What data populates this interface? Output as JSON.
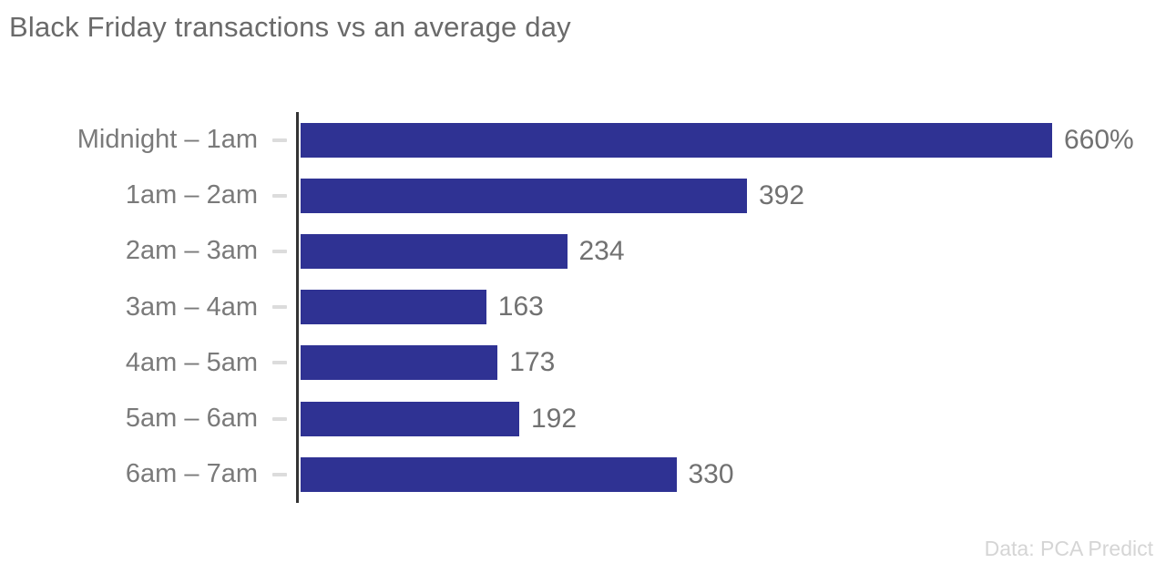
{
  "title": "Black Friday transactions vs an average day",
  "footer": {
    "source_label": "Data: PCA Predict"
  },
  "chart_data": {
    "type": "bar",
    "orientation": "horizontal",
    "title": "Black Friday transactions vs an average day",
    "categories": [
      "Midnight – 1am",
      "1am – 2am",
      "2am – 3am",
      "3am – 4am",
      "4am – 5am",
      "5am – 6am",
      "6am – 7am"
    ],
    "values": [
      660,
      392,
      234,
      163,
      173,
      192,
      330
    ],
    "value_labels": [
      "660%",
      "392",
      "234",
      "163",
      "173",
      "192",
      "330"
    ],
    "xlabel": "",
    "ylabel": "",
    "xlim": [
      0,
      660
    ],
    "grid": false,
    "legend": false,
    "colors": {
      "bar": "#2F3293",
      "axis": "#333333",
      "tick": "#DCDCDC",
      "category_label": "#7A7A7A",
      "value_label": "#717171",
      "title": "#6A6A6A",
      "footer": "#D5D5D5",
      "background": "#FFFFFF"
    }
  }
}
